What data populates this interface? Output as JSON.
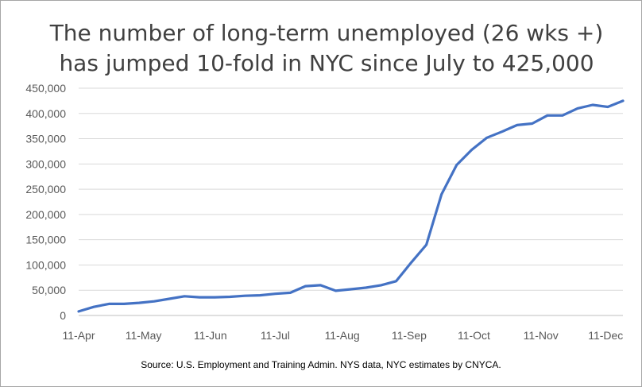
{
  "chart_data": {
    "type": "line",
    "title_lines": [
      "The number of long-term unemployed (26 wks +)",
      "has jumped 10-fold in NYC since July to 425,000"
    ],
    "source": "Source: U.S. Employment and Training Admin. NYS data, NYC estimates by CNYCA.",
    "xlabel": "",
    "ylabel": "",
    "x_start": "2020-04-11",
    "x_tick_labels": [
      "11-Apr",
      "11-May",
      "11-Jun",
      "11-Jul",
      "11-Aug",
      "11-Sep",
      "11-Oct",
      "11-Nov",
      "11-Dec"
    ],
    "y_tick_labels": [
      "0",
      "50,000",
      "100,000",
      "150,000",
      "200,000",
      "250,000",
      "300,000",
      "350,000",
      "400,000",
      "450,000"
    ],
    "ylim": [
      0,
      450000
    ],
    "grid": true,
    "legend": false,
    "line_color": "#4472c4",
    "series": [
      {
        "x": [
          "2020-04-11",
          "2020-04-18",
          "2020-04-25",
          "2020-05-02",
          "2020-05-09",
          "2020-05-16",
          "2020-05-23",
          "2020-05-30",
          "2020-06-06",
          "2020-06-13",
          "2020-06-20",
          "2020-06-27",
          "2020-07-04",
          "2020-07-11",
          "2020-07-18",
          "2020-07-25",
          "2020-08-01",
          "2020-08-08",
          "2020-08-15",
          "2020-08-22",
          "2020-08-29",
          "2020-09-05",
          "2020-09-12",
          "2020-09-19",
          "2020-09-26",
          "2020-10-03",
          "2020-10-10",
          "2020-10-17",
          "2020-10-24",
          "2020-10-31",
          "2020-11-07",
          "2020-11-14",
          "2020-11-21",
          "2020-11-28",
          "2020-12-05",
          "2020-12-12",
          "2020-12-19"
        ],
        "values": [
          8000,
          17000,
          23000,
          23000,
          25000,
          28000,
          33000,
          38000,
          36000,
          36000,
          37000,
          39000,
          40000,
          43000,
          45000,
          58000,
          60000,
          49000,
          52000,
          55000,
          60000,
          68000,
          105000,
          140000,
          240000,
          298000,
          328000,
          352000,
          364000,
          377000,
          380000,
          396000,
          396000,
          410000,
          417000,
          413000,
          425000
        ]
      }
    ]
  }
}
